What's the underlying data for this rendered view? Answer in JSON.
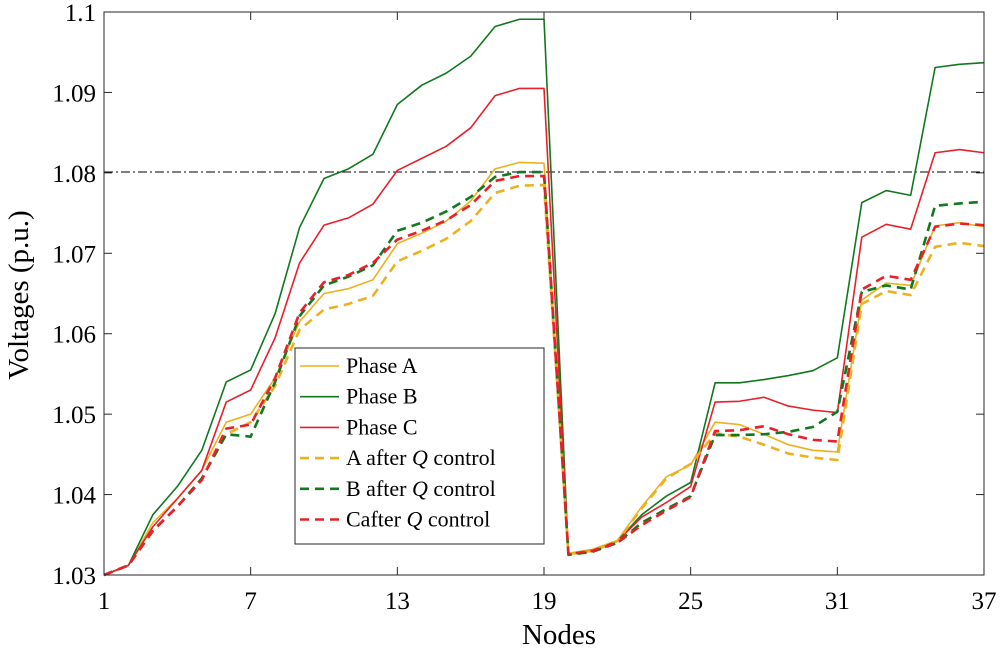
{
  "chart_data": {
    "type": "line",
    "title": "",
    "xlabel": "Nodes",
    "ylabel": "Voltages (p.u.)",
    "xlim": [
      1,
      37
    ],
    "ylim": [
      1.03,
      1.1
    ],
    "xticks": [
      1,
      7,
      13,
      19,
      25,
      31,
      37
    ],
    "xtick_labels": [
      "1",
      "7",
      "13",
      "19",
      "25",
      "31",
      "37"
    ],
    "yticks": [
      1.03,
      1.04,
      1.05,
      1.06,
      1.07,
      1.08,
      1.09,
      1.1
    ],
    "ytick_labels": [
      "1.03",
      "1.04",
      "1.05",
      "1.06",
      "1.07",
      "1.08",
      "1.09",
      "1.1"
    ],
    "grid": false,
    "legend_position": "lower-middle-left",
    "limit_line": {
      "y": 1.0801,
      "style": "dash-dot",
      "color": "#000000"
    },
    "x": [
      1,
      2,
      3,
      4,
      5,
      6,
      7,
      8,
      9,
      10,
      11,
      12,
      13,
      14,
      15,
      16,
      17,
      18,
      19,
      20,
      21,
      22,
      23,
      24,
      25,
      26,
      27,
      28,
      29,
      30,
      31,
      32,
      33,
      34,
      35,
      36,
      37
    ],
    "series": [
      {
        "name": "Phase A",
        "legend_prefix": "Phase A",
        "legend_italic": "",
        "legend_suffix": "",
        "color": "#EDB120",
        "dash": "solid",
        "values": [
          1.03,
          1.0312,
          1.0365,
          1.0395,
          1.043,
          1.049,
          1.05,
          1.0545,
          1.0615,
          1.065,
          1.0656,
          1.0667,
          1.0712,
          1.0725,
          1.074,
          1.0765,
          1.0805,
          1.0813,
          1.0812,
          1.0327,
          1.0332,
          1.0343,
          1.0385,
          1.0422,
          1.0437,
          1.049,
          1.0487,
          1.0475,
          1.0462,
          1.0455,
          1.0453,
          1.0642,
          1.0663,
          1.066,
          1.0734,
          1.0738,
          1.0733
        ]
      },
      {
        "name": "Phase B",
        "legend_prefix": "Phase B",
        "legend_italic": "",
        "legend_suffix": "",
        "color": "#11781E",
        "dash": "solid",
        "values": [
          1.03,
          1.0312,
          1.0375,
          1.041,
          1.0455,
          1.054,
          1.0555,
          1.0625,
          1.0732,
          1.0793,
          1.0805,
          1.0823,
          1.0885,
          1.0909,
          1.0924,
          1.0945,
          1.0982,
          1.0991,
          1.0991,
          1.0326,
          1.033,
          1.0342,
          1.0375,
          1.0398,
          1.0415,
          1.0539,
          1.0539,
          1.0543,
          1.0548,
          1.0554,
          1.057,
          1.0763,
          1.0778,
          1.0772,
          1.0931,
          1.0935,
          1.0937
        ]
      },
      {
        "name": "Phase C",
        "legend_prefix": "Phase C",
        "legend_italic": "",
        "legend_suffix": "",
        "color": "#E8202A",
        "dash": "solid",
        "values": [
          1.03,
          1.0312,
          1.036,
          1.0395,
          1.043,
          1.0515,
          1.053,
          1.0595,
          1.0688,
          1.0735,
          1.0744,
          1.0761,
          1.0803,
          1.0818,
          1.0833,
          1.0856,
          1.0896,
          1.0905,
          1.0905,
          1.0326,
          1.0331,
          1.0342,
          1.0372,
          1.039,
          1.041,
          1.0515,
          1.0516,
          1.0521,
          1.051,
          1.0505,
          1.0502,
          1.072,
          1.0736,
          1.073,
          1.0825,
          1.0829,
          1.0825
        ]
      },
      {
        "name": "A after Q control",
        "legend_prefix": "A after ",
        "legend_italic": "Q",
        "legend_suffix": " control",
        "color": "#EDB120",
        "dash": "dashed",
        "values": [
          1.03,
          1.0312,
          1.0355,
          1.0385,
          1.042,
          1.0475,
          1.049,
          1.0535,
          1.0605,
          1.063,
          1.0637,
          1.0647,
          1.069,
          1.0703,
          1.0718,
          1.074,
          1.0775,
          1.0784,
          1.0785,
          1.0326,
          1.033,
          1.0342,
          1.0383,
          1.042,
          1.0438,
          1.0476,
          1.0472,
          1.0462,
          1.0451,
          1.0446,
          1.0443,
          1.0637,
          1.0653,
          1.0648,
          1.0708,
          1.0713,
          1.0709
        ]
      },
      {
        "name": "B after Q control",
        "legend_prefix": "B after ",
        "legend_italic": "Q",
        "legend_suffix": " control",
        "color": "#11781E",
        "dash": "dashed",
        "values": [
          1.03,
          1.0312,
          1.0355,
          1.0385,
          1.042,
          1.0475,
          1.0472,
          1.054,
          1.0622,
          1.066,
          1.0671,
          1.0685,
          1.0728,
          1.0738,
          1.0752,
          1.077,
          1.0795,
          1.0801,
          1.0801,
          1.0325,
          1.0329,
          1.034,
          1.0365,
          1.0382,
          1.0398,
          1.0474,
          1.0474,
          1.0475,
          1.0478,
          1.0484,
          1.0503,
          1.0652,
          1.066,
          1.0655,
          1.0759,
          1.0762,
          1.0764
        ]
      },
      {
        "name": "Cafter Q control",
        "legend_prefix": "Cafter ",
        "legend_italic": "Q",
        "legend_suffix": " control",
        "color": "#E8202A",
        "dash": "dashed",
        "values": [
          1.03,
          1.0312,
          1.0355,
          1.0385,
          1.0418,
          1.0482,
          1.0487,
          1.0545,
          1.0626,
          1.0664,
          1.0673,
          1.0688,
          1.0717,
          1.0728,
          1.0741,
          1.076,
          1.079,
          1.0796,
          1.0796,
          1.0326,
          1.033,
          1.034,
          1.0362,
          1.038,
          1.0397,
          1.0479,
          1.048,
          1.0485,
          1.0475,
          1.0468,
          1.0466,
          1.0655,
          1.0672,
          1.0667,
          1.0733,
          1.0737,
          1.0735
        ]
      }
    ]
  }
}
